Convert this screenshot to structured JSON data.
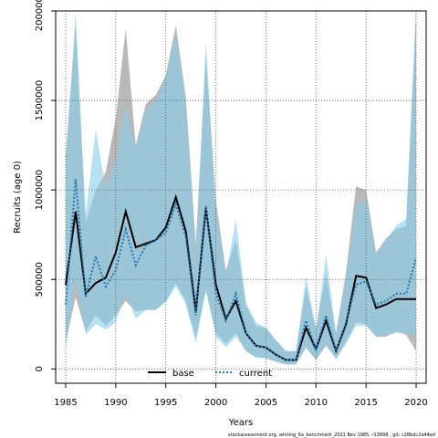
{
  "chart_data": {
    "type": "line",
    "xlabel": "Years",
    "ylabel": "Recruits (age 0)",
    "xlim": [
      1984,
      2021
    ],
    "ylim": [
      -80000,
      2000000
    ],
    "xticks": [
      1985,
      1990,
      1995,
      2000,
      2005,
      2010,
      2015,
      2020
    ],
    "yticks": [
      0,
      500000,
      1000000,
      1500000,
      2000000
    ],
    "grid": true,
    "legend_position": "bottom-left",
    "footnote": "stockassessment.org, whiting_6a_benchmark_2021 Bev 1985, r13898 , git: c28bdc2a44ad",
    "x": [
      1985,
      1986,
      1987,
      1988,
      1989,
      1990,
      1991,
      1992,
      1993,
      1994,
      1995,
      1996,
      1997,
      1998,
      1999,
      2000,
      2001,
      2002,
      2003,
      2004,
      2005,
      2006,
      2007,
      2008,
      2009,
      2010,
      2011,
      2012,
      2013,
      2014,
      2015,
      2016,
      2017,
      2018,
      2019,
      2020
    ],
    "series": [
      {
        "name": "base",
        "color": "#000000",
        "style": "solid",
        "values": [
          470000,
          880000,
          420000,
          480000,
          510000,
          650000,
          880000,
          680000,
          700000,
          720000,
          790000,
          960000,
          770000,
          320000,
          900000,
          470000,
          280000,
          380000,
          200000,
          130000,
          120000,
          80000,
          50000,
          50000,
          230000,
          110000,
          270000,
          100000,
          250000,
          520000,
          510000,
          340000,
          360000,
          390000,
          390000,
          390000
        ],
        "ci_low": [
          150000,
          400000,
          210000,
          300000,
          240000,
          300000,
          380000,
          320000,
          330000,
          330000,
          380000,
          480000,
          380000,
          170000,
          440000,
          200000,
          140000,
          200000,
          100000,
          70000,
          60000,
          40000,
          25000,
          25000,
          120000,
          50000,
          130000,
          60000,
          150000,
          260000,
          250000,
          180000,
          180000,
          210000,
          190000,
          100000
        ],
        "ci_high": [
          1200000,
          1920000,
          820000,
          1000000,
          1100000,
          1400000,
          1900000,
          1250000,
          1480000,
          1530000,
          1640000,
          1920000,
          1520000,
          700000,
          1750000,
          940000,
          550000,
          720000,
          360000,
          240000,
          230000,
          160000,
          100000,
          100000,
          460000,
          230000,
          530000,
          200000,
          540000,
          1020000,
          1000000,
          650000,
          730000,
          780000,
          800000,
          2000000
        ]
      },
      {
        "name": "current",
        "color": "#1f77b4",
        "style": "dotted",
        "values": [
          360000,
          1060000,
          400000,
          630000,
          460000,
          550000,
          780000,
          580000,
          690000,
          720000,
          760000,
          920000,
          740000,
          300000,
          910000,
          420000,
          270000,
          420000,
          200000,
          130000,
          120000,
          80000,
          50000,
          50000,
          270000,
          110000,
          300000,
          100000,
          260000,
          470000,
          490000,
          360000,
          380000,
          420000,
          420000,
          620000
        ],
        "ci_low": [
          110000,
          500000,
          190000,
          250000,
          220000,
          260000,
          420000,
          280000,
          330000,
          330000,
          370000,
          460000,
          360000,
          140000,
          440000,
          180000,
          120000,
          180000,
          100000,
          60000,
          60000,
          40000,
          25000,
          25000,
          120000,
          50000,
          140000,
          50000,
          140000,
          240000,
          240000,
          180000,
          190000,
          200000,
          200000,
          180000
        ],
        "ci_high": [
          1150000,
          2000000,
          860000,
          1340000,
          1000000,
          1170000,
          1470000,
          1230000,
          1440000,
          1500000,
          1630000,
          1880000,
          1480000,
          620000,
          1830000,
          890000,
          520000,
          840000,
          370000,
          260000,
          230000,
          160000,
          100000,
          100000,
          520000,
          220000,
          640000,
          200000,
          510000,
          910000,
          950000,
          640000,
          720000,
          800000,
          840000,
          2000000
        ]
      }
    ]
  }
}
